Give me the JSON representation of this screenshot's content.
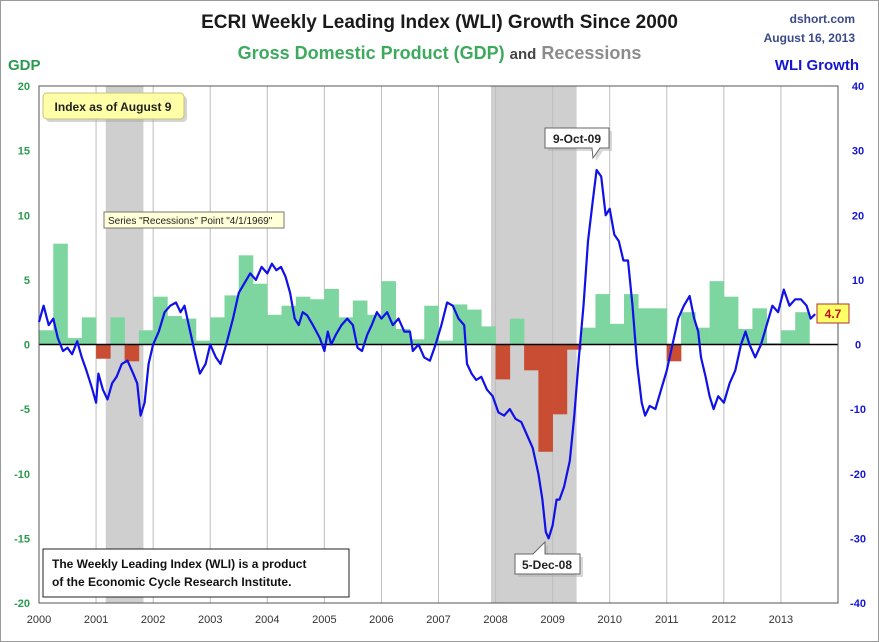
{
  "header": {
    "title": "ECRI Weekly Leading Index (WLI) Growth Since 2000",
    "subtitle_gdp": "Gross Domestic Product (GDP)",
    "subtitle_and": "and",
    "subtitle_rec": "Recessions",
    "source": "dshort.com",
    "date": "August 16, 2013"
  },
  "axes": {
    "left_label": "GDP",
    "right_label": "WLI Growth"
  },
  "annotations": {
    "index_note": "Index as of August 9",
    "series_tooltip": "Series \"Recessions\" Point \"4/1/1969\"",
    "peak_label": "9-Oct-09",
    "trough_label": "5-Dec-08",
    "last_value": "4.7",
    "info_line1": "The Weekly Leading Index (WLI) is a product",
    "info_line2": "of the Economic Cycle Research Institute."
  },
  "colors": {
    "gdp_pos": "#7dd6a0",
    "gdp_neg": "#c94d33",
    "wli": "#1010e8",
    "recession": "#cfcfcf"
  },
  "chart_data": {
    "type": "bar",
    "title": "ECRI Weekly Leading Index (WLI) Growth Since 2000",
    "x_range": [
      2000,
      2014
    ],
    "x_ticks": [
      "2000",
      "2001",
      "2002",
      "2003",
      "2004",
      "2005",
      "2006",
      "2007",
      "2008",
      "2009",
      "2010",
      "2011",
      "2012",
      "2013"
    ],
    "left_axis": {
      "label": "GDP",
      "range": [
        -20,
        20
      ],
      "ticks": [
        "-20",
        "-15",
        "-10",
        "-5",
        "0",
        "5",
        "10",
        "15",
        "20"
      ]
    },
    "right_axis": {
      "label": "WLI Growth",
      "range": [
        -40,
        40
      ],
      "ticks": [
        "-40",
        "-30",
        "-20",
        "-10",
        "0",
        "10",
        "20",
        "30",
        "40"
      ]
    },
    "recessions": [
      {
        "start": 2001.17,
        "end": 2001.83
      },
      {
        "start": 2007.92,
        "end": 2009.42
      }
    ],
    "gdp_quarterly": {
      "start": 2000.0,
      "step": 0.25,
      "values": [
        1.1,
        7.8,
        0.5,
        2.1,
        -1.1,
        2.1,
        -1.3,
        1.1,
        3.7,
        2.2,
        2.0,
        0.3,
        2.1,
        3.8,
        6.9,
        4.7,
        2.3,
        3.0,
        3.7,
        3.5,
        4.3,
        2.1,
        3.4,
        2.3,
        4.9,
        1.2,
        0.4,
        3.0,
        0.3,
        3.1,
        2.7,
        1.4,
        -2.7,
        2.0,
        -2.0,
        -8.3,
        -5.4,
        -0.4,
        1.3,
        3.9,
        1.6,
        3.9,
        2.8,
        2.8,
        -1.3,
        2.5,
        1.3,
        4.9,
        3.7,
        1.2,
        2.8,
        0.1,
        1.1,
        2.5
      ]
    },
    "wli_series": [
      {
        "x": 2000.0,
        "y": 3.5
      },
      {
        "x": 2000.08,
        "y": 6.0
      },
      {
        "x": 2000.17,
        "y": 3.0
      },
      {
        "x": 2000.25,
        "y": 4.0
      },
      {
        "x": 2000.33,
        "y": 1.0
      },
      {
        "x": 2000.42,
        "y": -1.0
      },
      {
        "x": 2000.5,
        "y": -0.5
      },
      {
        "x": 2000.58,
        "y": -1.5
      },
      {
        "x": 2000.67,
        "y": 0.5
      },
      {
        "x": 2000.75,
        "y": -2.0
      },
      {
        "x": 2000.83,
        "y": -4.0
      },
      {
        "x": 2000.92,
        "y": -6.5
      },
      {
        "x": 2001.0,
        "y": -9.0
      },
      {
        "x": 2001.04,
        "y": -4.5
      },
      {
        "x": 2001.12,
        "y": -7.0
      },
      {
        "x": 2001.2,
        "y": -8.5
      },
      {
        "x": 2001.28,
        "y": -6.0
      },
      {
        "x": 2001.36,
        "y": -5.0
      },
      {
        "x": 2001.45,
        "y": -3.0
      },
      {
        "x": 2001.55,
        "y": -2.5
      },
      {
        "x": 2001.65,
        "y": -4.5
      },
      {
        "x": 2001.72,
        "y": -6.0
      },
      {
        "x": 2001.78,
        "y": -11.0
      },
      {
        "x": 2001.85,
        "y": -9.0
      },
      {
        "x": 2001.92,
        "y": -3.0
      },
      {
        "x": 2002.0,
        "y": 0.0
      },
      {
        "x": 2002.1,
        "y": 2.0
      },
      {
        "x": 2002.2,
        "y": 5.0
      },
      {
        "x": 2002.3,
        "y": 6.0
      },
      {
        "x": 2002.4,
        "y": 6.5
      },
      {
        "x": 2002.48,
        "y": 5.0
      },
      {
        "x": 2002.55,
        "y": 6.0
      },
      {
        "x": 2002.65,
        "y": 2.0
      },
      {
        "x": 2002.75,
        "y": -2.0
      },
      {
        "x": 2002.82,
        "y": -4.5
      },
      {
        "x": 2002.92,
        "y": -3.0
      },
      {
        "x": 2003.0,
        "y": 0.0
      },
      {
        "x": 2003.1,
        "y": -2.0
      },
      {
        "x": 2003.18,
        "y": -3.0
      },
      {
        "x": 2003.28,
        "y": 0.0
      },
      {
        "x": 2003.4,
        "y": 4.0
      },
      {
        "x": 2003.5,
        "y": 8.0
      },
      {
        "x": 2003.6,
        "y": 9.5
      },
      {
        "x": 2003.7,
        "y": 11.0
      },
      {
        "x": 2003.8,
        "y": 10.0
      },
      {
        "x": 2003.9,
        "y": 12.0
      },
      {
        "x": 2004.0,
        "y": 11.0
      },
      {
        "x": 2004.08,
        "y": 12.5
      },
      {
        "x": 2004.16,
        "y": 11.5
      },
      {
        "x": 2004.24,
        "y": 12.0
      },
      {
        "x": 2004.32,
        "y": 10.5
      },
      {
        "x": 2004.4,
        "y": 8.0
      },
      {
        "x": 2004.48,
        "y": 4.0
      },
      {
        "x": 2004.55,
        "y": 3.0
      },
      {
        "x": 2004.62,
        "y": 5.0
      },
      {
        "x": 2004.7,
        "y": 4.5
      },
      {
        "x": 2004.8,
        "y": 3.0
      },
      {
        "x": 2004.92,
        "y": 1.0
      },
      {
        "x": 2005.0,
        "y": -1.0
      },
      {
        "x": 2005.06,
        "y": 2.0
      },
      {
        "x": 2005.12,
        "y": 0.0
      },
      {
        "x": 2005.2,
        "y": 1.5
      },
      {
        "x": 2005.3,
        "y": 3.0
      },
      {
        "x": 2005.4,
        "y": 4.0
      },
      {
        "x": 2005.5,
        "y": 3.0
      },
      {
        "x": 2005.58,
        "y": -0.5
      },
      {
        "x": 2005.66,
        "y": -1.0
      },
      {
        "x": 2005.75,
        "y": 1.5
      },
      {
        "x": 2005.83,
        "y": 3.0
      },
      {
        "x": 2005.92,
        "y": 5.0
      },
      {
        "x": 2006.0,
        "y": 4.0
      },
      {
        "x": 2006.1,
        "y": 5.0
      },
      {
        "x": 2006.2,
        "y": 3.0
      },
      {
        "x": 2006.3,
        "y": 4.0
      },
      {
        "x": 2006.4,
        "y": 2.0
      },
      {
        "x": 2006.5,
        "y": 2.0
      },
      {
        "x": 2006.55,
        "y": -1.0
      },
      {
        "x": 2006.65,
        "y": 0.0
      },
      {
        "x": 2006.75,
        "y": -2.0
      },
      {
        "x": 2006.85,
        "y": -2.5
      },
      {
        "x": 2006.95,
        "y": 0.0
      },
      {
        "x": 2007.05,
        "y": 3.0
      },
      {
        "x": 2007.15,
        "y": 6.5
      },
      {
        "x": 2007.25,
        "y": 6.0
      },
      {
        "x": 2007.35,
        "y": 4.0
      },
      {
        "x": 2007.45,
        "y": 3.0
      },
      {
        "x": 2007.5,
        "y": -3.0
      },
      {
        "x": 2007.58,
        "y": -4.5
      },
      {
        "x": 2007.66,
        "y": -5.5
      },
      {
        "x": 2007.75,
        "y": -5.0
      },
      {
        "x": 2007.85,
        "y": -7.0
      },
      {
        "x": 2007.95,
        "y": -8.0
      },
      {
        "x": 2008.05,
        "y": -10.5
      },
      {
        "x": 2008.15,
        "y": -11.0
      },
      {
        "x": 2008.25,
        "y": -10.0
      },
      {
        "x": 2008.35,
        "y": -11.5
      },
      {
        "x": 2008.45,
        "y": -12.0
      },
      {
        "x": 2008.55,
        "y": -14.0
      },
      {
        "x": 2008.65,
        "y": -16.0
      },
      {
        "x": 2008.75,
        "y": -20.0
      },
      {
        "x": 2008.82,
        "y": -24.0
      },
      {
        "x": 2008.88,
        "y": -29.0
      },
      {
        "x": 2008.93,
        "y": -30.0
      },
      {
        "x": 2009.0,
        "y": -28.0
      },
      {
        "x": 2009.07,
        "y": -24.0
      },
      {
        "x": 2009.12,
        "y": -24.0
      },
      {
        "x": 2009.2,
        "y": -22.0
      },
      {
        "x": 2009.3,
        "y": -18.0
      },
      {
        "x": 2009.38,
        "y": -11.0
      },
      {
        "x": 2009.46,
        "y": -2.0
      },
      {
        "x": 2009.54,
        "y": 6.0
      },
      {
        "x": 2009.62,
        "y": 16.0
      },
      {
        "x": 2009.7,
        "y": 22.0
      },
      {
        "x": 2009.77,
        "y": 27.0
      },
      {
        "x": 2009.85,
        "y": 26.0
      },
      {
        "x": 2009.93,
        "y": 20.0
      },
      {
        "x": 2010.0,
        "y": 21.0
      },
      {
        "x": 2010.08,
        "y": 17.0
      },
      {
        "x": 2010.16,
        "y": 16.0
      },
      {
        "x": 2010.24,
        "y": 13.0
      },
      {
        "x": 2010.32,
        "y": 13.0
      },
      {
        "x": 2010.4,
        "y": 6.0
      },
      {
        "x": 2010.48,
        "y": -3.0
      },
      {
        "x": 2010.56,
        "y": -9.0
      },
      {
        "x": 2010.62,
        "y": -11.0
      },
      {
        "x": 2010.7,
        "y": -9.5
      },
      {
        "x": 2010.8,
        "y": -10.0
      },
      {
        "x": 2010.9,
        "y": -7.0
      },
      {
        "x": 2011.0,
        "y": -4.0
      },
      {
        "x": 2011.1,
        "y": 0.0
      },
      {
        "x": 2011.2,
        "y": 4.0
      },
      {
        "x": 2011.3,
        "y": 6.0
      },
      {
        "x": 2011.4,
        "y": 7.5
      },
      {
        "x": 2011.48,
        "y": 4.0
      },
      {
        "x": 2011.55,
        "y": 2.0
      },
      {
        "x": 2011.6,
        "y": -2.0
      },
      {
        "x": 2011.68,
        "y": -5.0
      },
      {
        "x": 2011.75,
        "y": -8.0
      },
      {
        "x": 2011.82,
        "y": -10.0
      },
      {
        "x": 2011.9,
        "y": -8.0
      },
      {
        "x": 2012.0,
        "y": -9.0
      },
      {
        "x": 2012.1,
        "y": -6.0
      },
      {
        "x": 2012.2,
        "y": -4.0
      },
      {
        "x": 2012.3,
        "y": 0.0
      },
      {
        "x": 2012.38,
        "y": 2.0
      },
      {
        "x": 2012.45,
        "y": 0.0
      },
      {
        "x": 2012.55,
        "y": -2.0
      },
      {
        "x": 2012.65,
        "y": 0.0
      },
      {
        "x": 2012.75,
        "y": 3.0
      },
      {
        "x": 2012.85,
        "y": 6.0
      },
      {
        "x": 2012.95,
        "y": 5.0
      },
      {
        "x": 2013.05,
        "y": 8.5
      },
      {
        "x": 2013.15,
        "y": 6.0
      },
      {
        "x": 2013.25,
        "y": 7.0
      },
      {
        "x": 2013.35,
        "y": 7.0
      },
      {
        "x": 2013.45,
        "y": 6.0
      },
      {
        "x": 2013.52,
        "y": 4.0
      },
      {
        "x": 2013.6,
        "y": 4.7
      }
    ]
  }
}
